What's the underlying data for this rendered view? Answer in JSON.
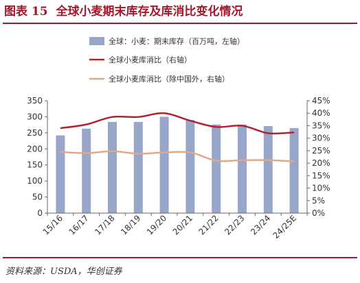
{
  "figure": {
    "label": "图表 15",
    "title": "全球小麦期末库存及库消比变化情况",
    "source": "资料来源：USDA，华创证券"
  },
  "colors": {
    "title": "#a5172b",
    "bar": "#98a6c9",
    "stock_ratio": "#b2222d",
    "stock_ratio_ex_china": "#e0a98a"
  },
  "chart_data": {
    "type": "bar",
    "categories": [
      "15/16",
      "16/17",
      "17/18",
      "18/19",
      "19/20",
      "20/21",
      "21/22",
      "22/23",
      "23/24",
      "24/25E"
    ],
    "series": [
      {
        "name": "全球：小麦：期末库存（百万吨，左轴）",
        "kind": "bar",
        "axis": "left",
        "values": [
          242,
          263,
          284,
          284,
          300,
          290,
          276,
          276,
          271,
          265
        ]
      },
      {
        "name": "全球小麦库消比（右轴）",
        "kind": "line",
        "axis": "right",
        "values": [
          34.0,
          35.5,
          38.5,
          38.5,
          40.0,
          37.0,
          34.5,
          35.0,
          32.0,
          32.3
        ]
      },
      {
        "name": "全球小麦库消比（除中国外，右轴）",
        "kind": "line",
        "axis": "right",
        "values": [
          24.5,
          24.0,
          24.8,
          23.8,
          24.3,
          24.3,
          21.0,
          21.2,
          21.2,
          20.7
        ]
      }
    ],
    "ylim_left": [
      0,
      350
    ],
    "yticks_left": [
      "0",
      "50",
      "100",
      "150",
      "200",
      "250",
      "300",
      "350"
    ],
    "ylim_right": [
      0,
      45
    ],
    "yticks_right": [
      "0%",
      "5%",
      "10%",
      "15%",
      "20%",
      "25%",
      "30%",
      "35%",
      "40%",
      "45%"
    ],
    "grid": false,
    "legend_position": "top"
  }
}
